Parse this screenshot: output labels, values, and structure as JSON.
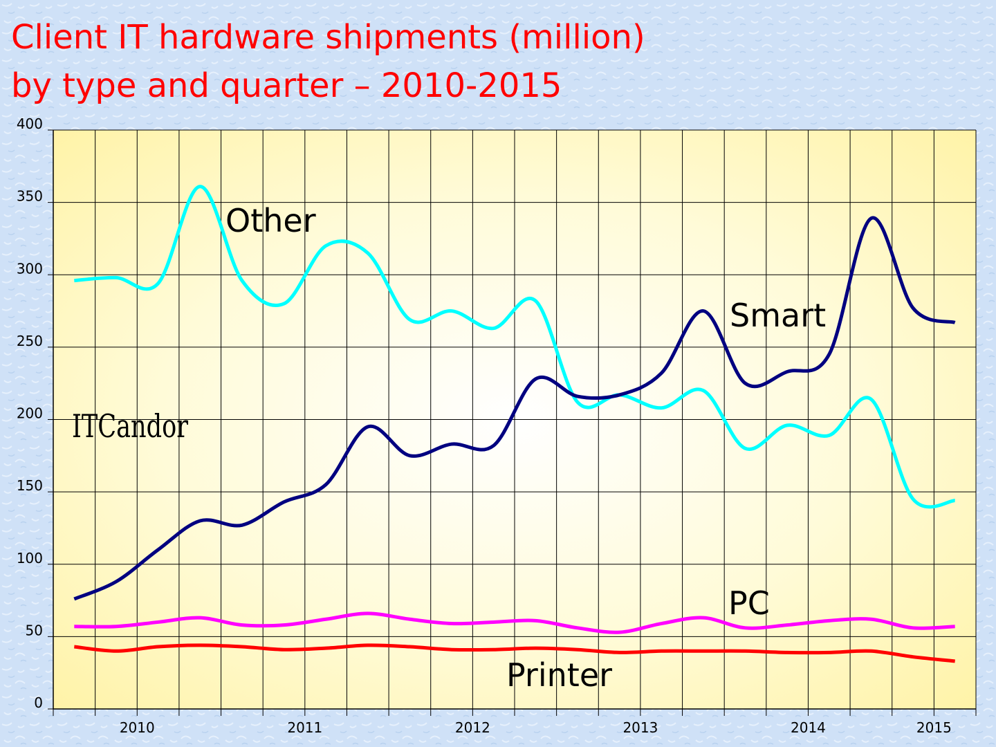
{
  "chart_data": {
    "type": "line",
    "title": [
      "Client IT hardware shipments (million)",
      "by type and quarter – 2010-2015"
    ],
    "logo": "ITCandor",
    "x": [
      2010.125,
      2010.375,
      2010.625,
      2010.875,
      2011.125,
      2011.375,
      2011.625,
      2011.875,
      2012.125,
      2012.375,
      2012.625,
      2012.875,
      2013.125,
      2013.375,
      2013.625,
      2013.875,
      2014.125,
      2014.375,
      2014.625,
      2014.875,
      2015.125,
      2015.375
    ],
    "series": [
      {
        "name": "Other",
        "color": "#00ffff",
        "values": [
          296,
          298,
          294,
          361,
          296,
          280,
          320,
          315,
          269,
          275,
          263,
          282,
          212,
          217,
          208,
          220,
          180,
          196,
          189,
          214,
          145,
          144
        ]
      },
      {
        "name": "Smart",
        "color": "#000080",
        "values": [
          76,
          88,
          110,
          130,
          127,
          143,
          155,
          195,
          175,
          183,
          182,
          228,
          216,
          217,
          232,
          275,
          225,
          233,
          245,
          339,
          277,
          267
        ]
      },
      {
        "name": "PC",
        "color": "#ff00ff",
        "values": [
          57,
          57,
          60,
          63,
          58,
          58,
          62,
          66,
          62,
          59,
          60,
          61,
          56,
          53,
          59,
          63,
          56,
          58,
          61,
          62,
          56,
          57
        ]
      },
      {
        "name": "Printer",
        "color": "#ff0000",
        "values": [
          43,
          40,
          43,
          44,
          43,
          41,
          42,
          44,
          43,
          41,
          41,
          42,
          41,
          39,
          40,
          40,
          40,
          39,
          39,
          40,
          36,
          33
        ]
      }
    ],
    "xlim": [
      2010,
      2015.5
    ],
    "xticks": [
      {
        "value": 2010.5,
        "label": "2010"
      },
      {
        "value": 2011.5,
        "label": "2011"
      },
      {
        "value": 2012.5,
        "label": "2012"
      },
      {
        "value": 2013.5,
        "label": "2013"
      },
      {
        "value": 2014.5,
        "label": "2014"
      },
      {
        "value": 2015.25,
        "label": "2015"
      }
    ],
    "ylim": [
      0,
      400
    ],
    "yticks": [
      0,
      50,
      100,
      150,
      200,
      250,
      300,
      350,
      400
    ],
    "grid": true
  }
}
